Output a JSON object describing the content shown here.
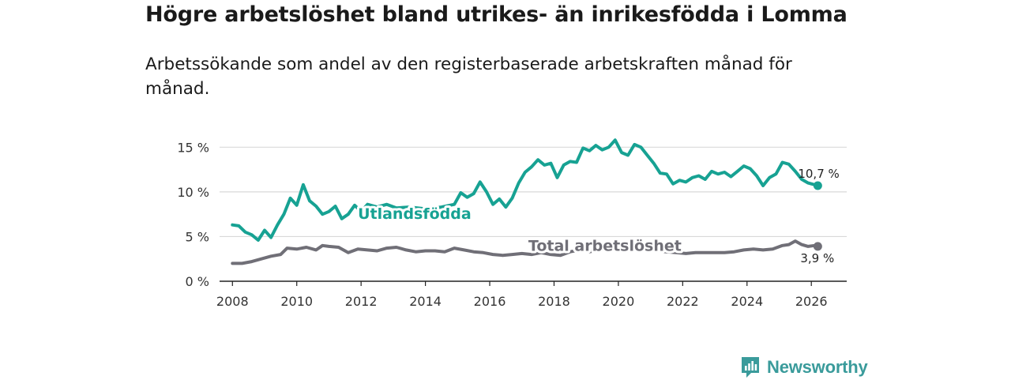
{
  "title": "Högre arbetslöshet bland utrikes- än inrikesfödda i Lomma",
  "subtitle": "Arbetssökande som andel av den registerbaserade arbetskraften månad för månad.",
  "brand": {
    "name": "Newsworthy"
  },
  "colors": {
    "foreign": "#17a293",
    "total": "#706f77",
    "grid": "#d9d9d9",
    "axis": "#222222",
    "brand": "#3a9b9b"
  },
  "chart_data": {
    "type": "line",
    "title": "Högre arbetslöshet bland utrikes- än inrikesfödda i Lomma",
    "xlabel": "",
    "ylabel": "",
    "xlim": [
      2007.6,
      2027.1
    ],
    "ylim": [
      0,
      16
    ],
    "x_ticks": [
      2008,
      2010,
      2012,
      2014,
      2016,
      2018,
      2020,
      2022,
      2024,
      2026
    ],
    "x_tick_labels": [
      "2008",
      "2010",
      "2012",
      "2014",
      "2016",
      "2018",
      "2020",
      "2022",
      "2024",
      "2026"
    ],
    "y_ticks": [
      0,
      5,
      10,
      15
    ],
    "y_tick_labels": [
      "0 %",
      "5 %",
      "10 %",
      "15 %"
    ],
    "grid": true,
    "series": [
      {
        "name": "Utlandsfödda",
        "label": "Utlandsfödda",
        "end_label": "10,7 %",
        "color": "#17a293",
        "points": [
          [
            2008.0,
            6.3
          ],
          [
            2008.2,
            6.2
          ],
          [
            2008.4,
            5.5
          ],
          [
            2008.6,
            5.2
          ],
          [
            2008.8,
            4.6
          ],
          [
            2009.0,
            5.7
          ],
          [
            2009.2,
            4.9
          ],
          [
            2009.4,
            6.3
          ],
          [
            2009.6,
            7.5
          ],
          [
            2009.8,
            9.3
          ],
          [
            2010.0,
            8.5
          ],
          [
            2010.2,
            10.8
          ],
          [
            2010.4,
            9.0
          ],
          [
            2010.6,
            8.4
          ],
          [
            2010.8,
            7.5
          ],
          [
            2011.0,
            7.8
          ],
          [
            2011.2,
            8.4
          ],
          [
            2011.4,
            7.0
          ],
          [
            2011.6,
            7.5
          ],
          [
            2011.8,
            8.5
          ],
          [
            2012.0,
            7.8
          ],
          [
            2012.2,
            8.6
          ],
          [
            2012.5,
            8.3
          ],
          [
            2012.8,
            8.6
          ],
          [
            2013.1,
            8.2
          ],
          [
            2013.5,
            8.3
          ],
          [
            2014.0,
            8.1
          ],
          [
            2014.5,
            8.3
          ],
          [
            2014.9,
            8.6
          ],
          [
            2015.1,
            9.9
          ],
          [
            2015.3,
            9.4
          ],
          [
            2015.5,
            9.8
          ],
          [
            2015.7,
            11.1
          ],
          [
            2015.9,
            10.0
          ],
          [
            2016.1,
            8.6
          ],
          [
            2016.3,
            9.2
          ],
          [
            2016.5,
            8.3
          ],
          [
            2016.7,
            9.3
          ],
          [
            2016.9,
            11.0
          ],
          [
            2017.1,
            12.2
          ],
          [
            2017.3,
            12.8
          ],
          [
            2017.5,
            13.6
          ],
          [
            2017.7,
            13.0
          ],
          [
            2017.9,
            13.2
          ],
          [
            2018.1,
            11.6
          ],
          [
            2018.3,
            13.0
          ],
          [
            2018.5,
            13.4
          ],
          [
            2018.7,
            13.3
          ],
          [
            2018.9,
            14.9
          ],
          [
            2019.1,
            14.6
          ],
          [
            2019.3,
            15.2
          ],
          [
            2019.5,
            14.7
          ],
          [
            2019.7,
            15.0
          ],
          [
            2019.9,
            15.8
          ],
          [
            2020.1,
            14.4
          ],
          [
            2020.3,
            14.1
          ],
          [
            2020.5,
            15.3
          ],
          [
            2020.7,
            15.0
          ],
          [
            2020.9,
            14.1
          ],
          [
            2021.1,
            13.2
          ],
          [
            2021.3,
            12.1
          ],
          [
            2021.5,
            12.0
          ],
          [
            2021.7,
            10.9
          ],
          [
            2021.9,
            11.3
          ],
          [
            2022.1,
            11.1
          ],
          [
            2022.3,
            11.6
          ],
          [
            2022.5,
            11.8
          ],
          [
            2022.7,
            11.4
          ],
          [
            2022.9,
            12.3
          ],
          [
            2023.1,
            12.0
          ],
          [
            2023.3,
            12.2
          ],
          [
            2023.5,
            11.7
          ],
          [
            2023.7,
            12.3
          ],
          [
            2023.9,
            12.9
          ],
          [
            2024.1,
            12.6
          ],
          [
            2024.3,
            11.8
          ],
          [
            2024.5,
            10.7
          ],
          [
            2024.7,
            11.6
          ],
          [
            2024.9,
            12.0
          ],
          [
            2025.1,
            13.3
          ],
          [
            2025.3,
            13.1
          ],
          [
            2025.5,
            12.3
          ],
          [
            2025.7,
            11.4
          ],
          [
            2025.9,
            11.0
          ],
          [
            2026.1,
            10.8
          ],
          [
            2026.2,
            10.7
          ]
        ]
      },
      {
        "name": "Total arbetslöshet",
        "label": "Total arbetslöshet",
        "end_label": "3,9 %",
        "color": "#706f77",
        "points": [
          [
            2008.0,
            2.0
          ],
          [
            2008.3,
            2.0
          ],
          [
            2008.6,
            2.2
          ],
          [
            2008.9,
            2.5
          ],
          [
            2009.2,
            2.8
          ],
          [
            2009.5,
            3.0
          ],
          [
            2009.7,
            3.7
          ],
          [
            2010.0,
            3.6
          ],
          [
            2010.3,
            3.8
          ],
          [
            2010.6,
            3.5
          ],
          [
            2010.8,
            4.0
          ],
          [
            2011.0,
            3.9
          ],
          [
            2011.3,
            3.8
          ],
          [
            2011.6,
            3.2
          ],
          [
            2011.9,
            3.6
          ],
          [
            2012.2,
            3.5
          ],
          [
            2012.5,
            3.4
          ],
          [
            2012.8,
            3.7
          ],
          [
            2013.1,
            3.8
          ],
          [
            2013.4,
            3.5
          ],
          [
            2013.7,
            3.3
          ],
          [
            2014.0,
            3.4
          ],
          [
            2014.3,
            3.4
          ],
          [
            2014.6,
            3.3
          ],
          [
            2014.9,
            3.7
          ],
          [
            2015.2,
            3.5
          ],
          [
            2015.5,
            3.3
          ],
          [
            2015.8,
            3.2
          ],
          [
            2016.1,
            3.0
          ],
          [
            2016.4,
            2.9
          ],
          [
            2016.7,
            3.0
          ],
          [
            2017.0,
            3.1
          ],
          [
            2017.3,
            3.0
          ],
          [
            2017.6,
            3.2
          ],
          [
            2017.9,
            3.0
          ],
          [
            2018.2,
            2.9
          ],
          [
            2018.5,
            3.3
          ],
          [
            2018.8,
            3.5
          ],
          [
            2019.1,
            3.3
          ],
          [
            2019.4,
            3.5
          ],
          [
            2019.7,
            3.6
          ],
          [
            2020.0,
            3.8
          ],
          [
            2020.3,
            3.9
          ],
          [
            2020.6,
            3.7
          ],
          [
            2020.9,
            3.6
          ],
          [
            2021.2,
            3.4
          ],
          [
            2021.5,
            3.3
          ],
          [
            2021.8,
            3.2
          ],
          [
            2022.1,
            3.1
          ],
          [
            2022.4,
            3.2
          ],
          [
            2022.7,
            3.2
          ],
          [
            2023.0,
            3.2
          ],
          [
            2023.3,
            3.2
          ],
          [
            2023.6,
            3.3
          ],
          [
            2023.9,
            3.5
          ],
          [
            2024.2,
            3.6
          ],
          [
            2024.5,
            3.5
          ],
          [
            2024.8,
            3.6
          ],
          [
            2025.1,
            4.0
          ],
          [
            2025.3,
            4.1
          ],
          [
            2025.5,
            4.5
          ],
          [
            2025.7,
            4.1
          ],
          [
            2025.9,
            3.9
          ],
          [
            2026.1,
            4.0
          ],
          [
            2026.2,
            3.9
          ]
        ]
      }
    ]
  }
}
